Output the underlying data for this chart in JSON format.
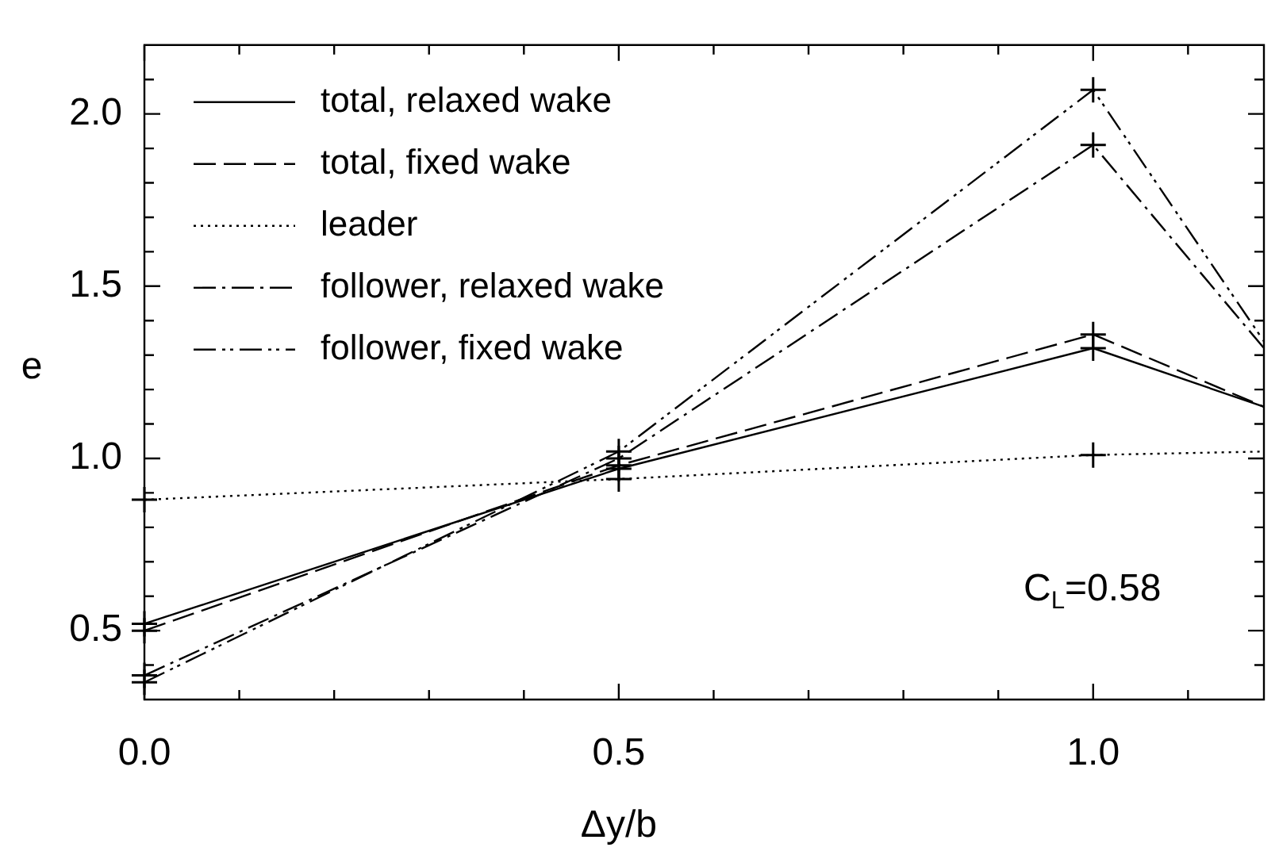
{
  "chart_data": {
    "type": "line",
    "xlabel": "Δy/b",
    "ylabel": "e",
    "x": [
      0,
      0.5,
      1.0,
      1.18
    ],
    "xlim": [
      0,
      1.18
    ],
    "ylim": [
      0.3,
      2.2
    ],
    "xticks": [
      {
        "value": 0,
        "label": "0.0"
      },
      {
        "value": 0.1,
        "label": null
      },
      {
        "value": 0.2,
        "label": null
      },
      {
        "value": 0.3,
        "label": null
      },
      {
        "value": 0.4,
        "label": null
      },
      {
        "value": 0.5,
        "label": "0.5"
      },
      {
        "value": 0.6,
        "label": null
      },
      {
        "value": 0.7,
        "label": null
      },
      {
        "value": 0.8,
        "label": null
      },
      {
        "value": 0.9,
        "label": null
      },
      {
        "value": 1.0,
        "label": "1.0"
      },
      {
        "value": 1.1,
        "label": null
      }
    ],
    "yticks": [
      {
        "value": 0.4,
        "label": null
      },
      {
        "value": 0.5,
        "label": "0.5"
      },
      {
        "value": 0.6,
        "label": null
      },
      {
        "value": 0.7,
        "label": null
      },
      {
        "value": 0.8,
        "label": null
      },
      {
        "value": 0.9,
        "label": null
      },
      {
        "value": 1.0,
        "label": "1.0"
      },
      {
        "value": 1.1,
        "label": null
      },
      {
        "value": 1.2,
        "label": null
      },
      {
        "value": 1.3,
        "label": null
      },
      {
        "value": 1.4,
        "label": null
      },
      {
        "value": 1.5,
        "label": "1.5"
      },
      {
        "value": 1.6,
        "label": null
      },
      {
        "value": 1.7,
        "label": null
      },
      {
        "value": 1.8,
        "label": null
      },
      {
        "value": 1.9,
        "label": null
      },
      {
        "value": 2.0,
        "label": "2.0"
      },
      {
        "value": 2.1,
        "label": null
      }
    ],
    "marker": "cross",
    "legend": "top left",
    "grid": false,
    "series": [
      {
        "name": "total, relaxed wake",
        "color": "#000000",
        "line_style": "solid",
        "values": [
          0.52,
          0.97,
          1.32,
          1.15
        ]
      },
      {
        "name": "total, fixed wake",
        "color": "#000000",
        "line_style": "dashed",
        "values": [
          0.5,
          0.98,
          1.36,
          1.15
        ]
      },
      {
        "name": "leader",
        "color": "#000000",
        "line_style": "dotted",
        "values": [
          0.88,
          0.94,
          1.01,
          1.02
        ]
      },
      {
        "name": "follower, relaxed wake",
        "color": "#000000",
        "line_style": "dashdot",
        "values": [
          0.37,
          1.0,
          1.91,
          1.32
        ]
      },
      {
        "name": "follower, fixed wake",
        "color": "#000000",
        "line_style": "dashdotdot",
        "values": [
          0.35,
          1.02,
          2.07,
          1.34
        ]
      }
    ],
    "annotations": [
      "C$_{L}$=0.58"
    ]
  }
}
